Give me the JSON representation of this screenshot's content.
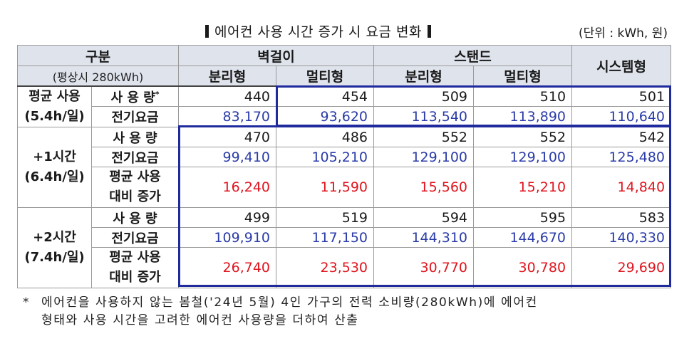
{
  "title": "에어컨 사용 시간 증가 시 요금 변화",
  "unit_note": "(단위 : kWh,  원)",
  "header": {
    "division": "구분",
    "division_note": "(평상시 280kWh)",
    "wall": "벽걸이",
    "stand": "스탠드",
    "system": "시스템형",
    "separate": "분리형",
    "multi": "멀티형"
  },
  "rows": {
    "avg_group": "평균 사용",
    "avg_hours": "(5.4h/일)",
    "plus1_group": "+1시간",
    "plus1_hours": "(6.4h/일)",
    "plus2_group": "+2시간",
    "plus2_hours": "(7.4h/일)",
    "usage_label": "사 용 량",
    "usage_star": "*",
    "bill_label": "전기요금",
    "increase_label_1": "평균 사용",
    "increase_label_2": "대비 증가"
  },
  "values": {
    "avg_usage": [
      "440",
      "454",
      "509",
      "510",
      "501"
    ],
    "avg_bill": [
      "83,170",
      "93,620",
      "113,540",
      "113,890",
      "110,640"
    ],
    "plus1_usage": [
      "470",
      "486",
      "552",
      "552",
      "542"
    ],
    "plus1_bill": [
      "99,410",
      "105,210",
      "129,100",
      "129,100",
      "125,480"
    ],
    "plus1_increase": [
      "16,240",
      "11,590",
      "15,560",
      "15,210",
      "14,840"
    ],
    "plus2_usage": [
      "499",
      "519",
      "594",
      "595",
      "583"
    ],
    "plus2_bill": [
      "109,910",
      "117,150",
      "144,310",
      "144,670",
      "140,330"
    ],
    "plus2_increase": [
      "26,740",
      "23,530",
      "30,770",
      "30,780",
      "29,690"
    ]
  },
  "footnote": {
    "star": "*",
    "line1": "에어컨을 사용하지 않는 봄철('24년 5월) 4인 가구의 전력 소비량(280kWh)에 에어컨",
    "line2": "형태와 사용 시간을 고려한 에어컨 사용량을 더하여 산출"
  },
  "colors": {
    "header_bg": "#dfe3ec",
    "bill_text": "#2a3ba8",
    "increase_text": "#e0141e",
    "highlight_border": "#1f2a9c"
  }
}
